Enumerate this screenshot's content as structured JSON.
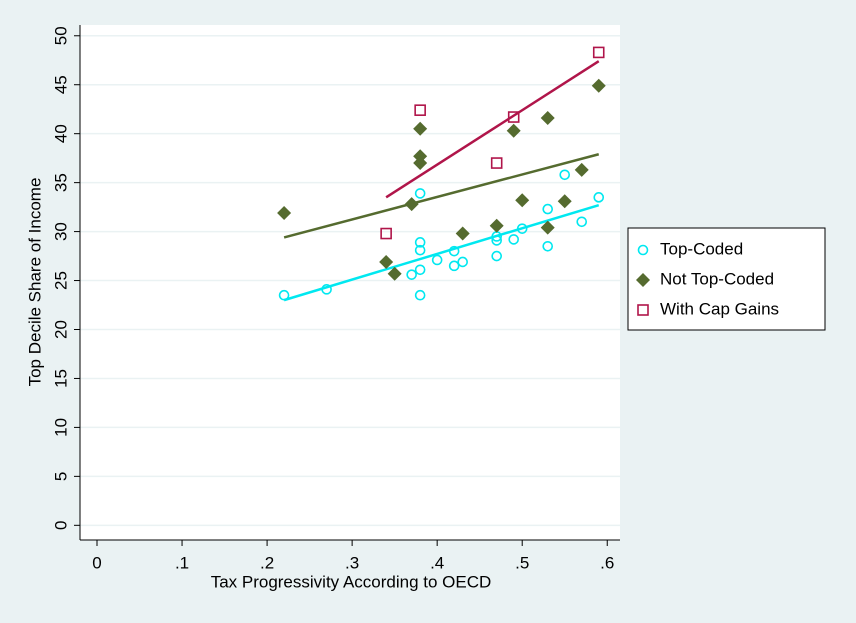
{
  "chart_data": {
    "type": "scatter",
    "x_label": "Tax Progressivity According to OECD",
    "y_label": "Top Decile Share of Income",
    "xlim": [
      -0.02,
      0.615
    ],
    "ylim": [
      -1.5,
      51.1
    ],
    "xticks": [
      0,
      {
        "value": 0.1,
        "label": ".1"
      },
      {
        "value": 0.2,
        "label": ".2"
      },
      {
        "value": 0.3,
        "label": ".3"
      },
      {
        "value": 0.4,
        "label": ".4"
      },
      {
        "value": 0.5,
        "label": ".5"
      },
      {
        "value": 0.6,
        "label": ".6"
      }
    ],
    "yticks": [
      0,
      5,
      10,
      15,
      20,
      25,
      30,
      35,
      40,
      45,
      50
    ],
    "grid": true,
    "legend": "right",
    "series": [
      {
        "name": "Top-Coded",
        "color": "#00e8f0",
        "marker": "circle",
        "x": [
          0.22,
          0.27,
          0.37,
          0.38,
          0.38,
          0.38,
          0.38,
          0.38,
          0.4,
          0.42,
          0.42,
          0.43,
          0.47,
          0.47,
          0.47,
          0.49,
          0.5,
          0.53,
          0.53,
          0.55,
          0.57,
          0.59
        ],
        "values": [
          23.5,
          24.1,
          25.6,
          26.1,
          23.5,
          28.1,
          28.9,
          33.9,
          27.1,
          28.0,
          26.5,
          26.9,
          27.5,
          29.1,
          29.5,
          29.2,
          30.3,
          28.5,
          32.3,
          35.8,
          31.0,
          33.5
        ]
      },
      {
        "name": "Not Top-Coded",
        "color": "#556b2f",
        "marker": "diamond",
        "x": [
          0.22,
          0.34,
          0.35,
          0.37,
          0.38,
          0.38,
          0.38,
          0.43,
          0.47,
          0.49,
          0.5,
          0.53,
          0.53,
          0.55,
          0.57,
          0.59
        ],
        "values": [
          31.9,
          26.9,
          25.7,
          32.8,
          40.5,
          37.7,
          37.0,
          29.8,
          30.6,
          40.3,
          33.2,
          41.6,
          30.4,
          33.1,
          36.3,
          44.9
        ]
      },
      {
        "name": "With Cap Gains",
        "color": "#b0154a",
        "marker": "square",
        "x": [
          0.34,
          0.38,
          0.47,
          0.49,
          0.59
        ],
        "values": [
          29.8,
          42.4,
          37.0,
          41.7,
          48.3
        ]
      }
    ],
    "fits": [
      {
        "color": "#00e8f0",
        "x": [
          0.22,
          0.59
        ],
        "values": [
          23.0,
          32.7
        ]
      },
      {
        "color": "#556b2f",
        "x": [
          0.22,
          0.59
        ],
        "values": [
          29.4,
          37.9
        ]
      },
      {
        "color": "#b0154a",
        "x": [
          0.34,
          0.59
        ],
        "values": [
          33.5,
          47.4
        ]
      }
    ]
  }
}
